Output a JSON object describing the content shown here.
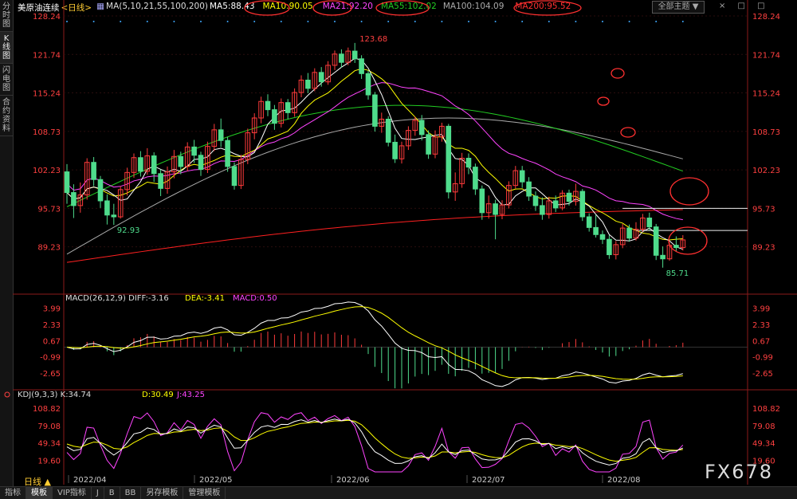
{
  "sidebar": {
    "tabs": [
      {
        "label": "分时图"
      },
      {
        "label": "K线图"
      },
      {
        "label": "闪电图"
      },
      {
        "label": "合约资料"
      }
    ]
  },
  "header": {
    "instrument": "美原油连续",
    "period_tag": "<日线>",
    "ma_params": "MA(5,10,21,55,100,200)",
    "ma5": "MA5:88.43",
    "ma10": "MA10:90.05",
    "ma21": "MA21:92.20",
    "ma55": "MA55:102.02",
    "ma100": "MA100:104.09",
    "ma200": "MA200:95.52",
    "theme_button": "全部主题 ▼",
    "window_buttons": "× □ □"
  },
  "macd_header": {
    "params": "MACD(26,12,9)",
    "diff": "DIFF:-3.16",
    "dea": "DEA:-3.41",
    "macd": "MACD:0.50"
  },
  "kdj_header": {
    "params": "KDJ(9,3,3)",
    "k": "K:34.74",
    "d": "D:30.49",
    "j": "J:43.25"
  },
  "price_axis": [
    "128.24",
    "121.74",
    "115.24",
    "108.73",
    "102.23",
    "95.73",
    "89.23"
  ],
  "macd_axis": [
    "3.99",
    "2.33",
    "0.67",
    "-0.99",
    "-2.65"
  ],
  "kdj_axis": [
    "108.82",
    "79.08",
    "49.34",
    "19.60"
  ],
  "date_axis": [
    "2022/04",
    "2022/05",
    "2022/06",
    "2022/07",
    "2022/08"
  ],
  "annotations": {
    "high_label": "123.68",
    "low_label_1": "92.93",
    "low_label_2": "85.71"
  },
  "period_label": "日线 ▲",
  "bottom_tabs": [
    "指标",
    "模板",
    "VIP指标",
    "J",
    "B",
    "BB",
    "另存模板",
    "管理模板"
  ],
  "watermark": "FX678",
  "colors": {
    "up_candle": "#ff3b3b",
    "down_candle": "#4fdc8c",
    "ma5": "#ffffff",
    "ma10": "#ffff00",
    "ma21": "#ff44ff",
    "ma55": "#22cc22",
    "ma100": "#aaaaaa",
    "ma200": "#ff2020",
    "highlight_circle": "#ff3030"
  },
  "chart_data": {
    "type": "candlestick",
    "title": "美原油连续 <日线>",
    "y_range": [
      85.71,
      128.24
    ],
    "candles": [
      {
        "o": 101.9,
        "c": 98.4,
        "h": 103.2,
        "l": 96.5
      },
      {
        "o": 98.4,
        "c": 96.2,
        "h": 99.8,
        "l": 94.1
      },
      {
        "o": 96.2,
        "c": 98.0,
        "h": 100.1,
        "l": 95.0
      },
      {
        "o": 98.0,
        "c": 103.5,
        "h": 104.2,
        "l": 97.2
      },
      {
        "o": 103.5,
        "c": 100.6,
        "h": 104.4,
        "l": 99.5
      },
      {
        "o": 100.6,
        "c": 97.0,
        "h": 101.2,
        "l": 95.8
      },
      {
        "o": 97.0,
        "c": 94.6,
        "h": 98.1,
        "l": 93.0
      },
      {
        "o": 94.6,
        "c": 94.3,
        "h": 96.5,
        "l": 92.93
      },
      {
        "o": 94.3,
        "c": 98.9,
        "h": 99.5,
        "l": 94.0
      },
      {
        "o": 98.9,
        "c": 101.8,
        "h": 102.6,
        "l": 97.9
      },
      {
        "o": 101.8,
        "c": 104.3,
        "h": 105.0,
        "l": 100.9
      },
      {
        "o": 104.3,
        "c": 102.0,
        "h": 105.4,
        "l": 101.1
      },
      {
        "o": 102.0,
        "c": 104.6,
        "h": 105.9,
        "l": 101.4
      },
      {
        "o": 104.6,
        "c": 101.6,
        "h": 105.2,
        "l": 100.2
      },
      {
        "o": 101.6,
        "c": 99.1,
        "h": 102.3,
        "l": 97.8
      },
      {
        "o": 99.1,
        "c": 101.9,
        "h": 102.8,
        "l": 98.2
      },
      {
        "o": 101.9,
        "c": 104.5,
        "h": 105.6,
        "l": 100.8
      },
      {
        "o": 104.5,
        "c": 102.8,
        "h": 105.3,
        "l": 101.5
      },
      {
        "o": 102.8,
        "c": 106.1,
        "h": 106.9,
        "l": 102.0
      },
      {
        "o": 106.1,
        "c": 104.7,
        "h": 107.3,
        "l": 103.4
      },
      {
        "o": 104.7,
        "c": 102.3,
        "h": 105.3,
        "l": 101.2
      },
      {
        "o": 102.3,
        "c": 106.2,
        "h": 107.0,
        "l": 101.7
      },
      {
        "o": 106.2,
        "c": 109.0,
        "h": 110.0,
        "l": 105.4
      },
      {
        "o": 109.0,
        "c": 107.2,
        "h": 110.9,
        "l": 106.1
      },
      {
        "o": 107.2,
        "c": 102.8,
        "h": 107.8,
        "l": 101.9
      },
      {
        "o": 102.8,
        "c": 99.6,
        "h": 103.5,
        "l": 98.9
      },
      {
        "o": 99.6,
        "c": 104.0,
        "h": 104.8,
        "l": 99.0
      },
      {
        "o": 104.0,
        "c": 108.5,
        "h": 109.2,
        "l": 103.2
      },
      {
        "o": 108.5,
        "c": 111.0,
        "h": 111.8,
        "l": 107.4
      },
      {
        "o": 111.0,
        "c": 113.8,
        "h": 114.6,
        "l": 110.1
      },
      {
        "o": 113.8,
        "c": 112.4,
        "h": 115.0,
        "l": 111.3
      },
      {
        "o": 112.4,
        "c": 110.1,
        "h": 113.2,
        "l": 109.0
      },
      {
        "o": 110.1,
        "c": 113.6,
        "h": 114.3,
        "l": 109.4
      },
      {
        "o": 113.6,
        "c": 111.9,
        "h": 114.2,
        "l": 110.8
      },
      {
        "o": 111.9,
        "c": 115.3,
        "h": 116.0,
        "l": 111.2
      },
      {
        "o": 115.3,
        "c": 117.4,
        "h": 118.2,
        "l": 114.5
      },
      {
        "o": 117.4,
        "c": 116.0,
        "h": 118.6,
        "l": 115.2
      },
      {
        "o": 116.0,
        "c": 118.7,
        "h": 119.4,
        "l": 115.5
      },
      {
        "o": 118.7,
        "c": 117.1,
        "h": 119.6,
        "l": 116.3
      },
      {
        "o": 117.1,
        "c": 119.9,
        "h": 120.6,
        "l": 116.6
      },
      {
        "o": 119.9,
        "c": 121.8,
        "h": 122.4,
        "l": 119.1
      },
      {
        "o": 121.8,
        "c": 120.4,
        "h": 122.6,
        "l": 119.5
      },
      {
        "o": 120.4,
        "c": 122.3,
        "h": 122.9,
        "l": 119.9
      },
      {
        "o": 122.3,
        "c": 121.0,
        "h": 123.68,
        "l": 120.3
      },
      {
        "o": 121.0,
        "c": 118.5,
        "h": 121.6,
        "l": 117.6
      },
      {
        "o": 118.5,
        "c": 114.9,
        "h": 119.0,
        "l": 114.1
      },
      {
        "o": 114.9,
        "c": 109.6,
        "h": 115.4,
        "l": 108.7
      },
      {
        "o": 109.6,
        "c": 110.8,
        "h": 111.9,
        "l": 108.5
      },
      {
        "o": 110.8,
        "c": 106.9,
        "h": 111.3,
        "l": 106.2
      },
      {
        "o": 106.9,
        "c": 104.1,
        "h": 108.2,
        "l": 103.4
      },
      {
        "o": 104.1,
        "c": 106.3,
        "h": 107.0,
        "l": 103.3
      },
      {
        "o": 106.3,
        "c": 108.9,
        "h": 109.6,
        "l": 105.6
      },
      {
        "o": 108.9,
        "c": 110.6,
        "h": 111.2,
        "l": 108.0
      },
      {
        "o": 110.6,
        "c": 108.2,
        "h": 111.5,
        "l": 107.2
      },
      {
        "o": 108.2,
        "c": 104.9,
        "h": 108.9,
        "l": 104.1
      },
      {
        "o": 104.9,
        "c": 107.8,
        "h": 108.9,
        "l": 104.2
      },
      {
        "o": 107.8,
        "c": 109.6,
        "h": 110.2,
        "l": 107.0
      },
      {
        "o": 109.6,
        "c": 98.5,
        "h": 110.0,
        "l": 97.4
      },
      {
        "o": 98.5,
        "c": 99.9,
        "h": 101.8,
        "l": 97.0
      },
      {
        "o": 99.9,
        "c": 104.2,
        "h": 105.1,
        "l": 99.2
      },
      {
        "o": 104.2,
        "c": 102.7,
        "h": 105.0,
        "l": 101.5
      },
      {
        "o": 102.7,
        "c": 99.0,
        "h": 103.3,
        "l": 98.0
      },
      {
        "o": 99.0,
        "c": 95.0,
        "h": 99.6,
        "l": 93.8
      },
      {
        "o": 95.0,
        "c": 96.5,
        "h": 97.9,
        "l": 94.0
      },
      {
        "o": 96.5,
        "c": 94.7,
        "h": 97.2,
        "l": 90.5
      },
      {
        "o": 94.7,
        "c": 96.3,
        "h": 97.1,
        "l": 93.9
      },
      {
        "o": 96.3,
        "c": 99.6,
        "h": 100.3,
        "l": 95.7
      },
      {
        "o": 99.6,
        "c": 102.1,
        "h": 102.9,
        "l": 99.1
      },
      {
        "o": 102.1,
        "c": 100.2,
        "h": 102.9,
        "l": 99.2
      },
      {
        "o": 100.2,
        "c": 97.8,
        "h": 101.0,
        "l": 97.0
      },
      {
        "o": 97.8,
        "c": 96.2,
        "h": 98.6,
        "l": 95.3
      },
      {
        "o": 96.2,
        "c": 94.7,
        "h": 97.6,
        "l": 93.8
      },
      {
        "o": 94.7,
        "c": 97.0,
        "h": 97.7,
        "l": 94.0
      },
      {
        "o": 97.0,
        "c": 95.8,
        "h": 97.9,
        "l": 95.1
      },
      {
        "o": 95.8,
        "c": 98.3,
        "h": 98.8,
        "l": 95.4
      },
      {
        "o": 98.3,
        "c": 96.9,
        "h": 98.9,
        "l": 96.2
      },
      {
        "o": 96.9,
        "c": 98.6,
        "h": 99.9,
        "l": 96.2
      },
      {
        "o": 98.6,
        "c": 94.3,
        "h": 99.0,
        "l": 93.6
      },
      {
        "o": 94.3,
        "c": 92.5,
        "h": 94.9,
        "l": 91.8
      },
      {
        "o": 92.5,
        "c": 91.3,
        "h": 94.6,
        "l": 90.8
      },
      {
        "o": 91.3,
        "c": 90.5,
        "h": 92.0,
        "l": 89.7
      },
      {
        "o": 90.5,
        "c": 87.9,
        "h": 91.2,
        "l": 87.2
      },
      {
        "o": 87.9,
        "c": 89.6,
        "h": 90.2,
        "l": 87.1
      },
      {
        "o": 89.6,
        "c": 92.4,
        "h": 93.1,
        "l": 89.0
      },
      {
        "o": 92.4,
        "c": 90.7,
        "h": 93.0,
        "l": 90.1
      },
      {
        "o": 90.7,
        "c": 92.2,
        "h": 93.4,
        "l": 90.3
      },
      {
        "o": 92.2,
        "c": 94.1,
        "h": 94.8,
        "l": 91.8
      },
      {
        "o": 94.1,
        "c": 92.6,
        "h": 95.0,
        "l": 92.0
      },
      {
        "o": 92.6,
        "c": 87.8,
        "h": 93.1,
        "l": 87.0
      },
      {
        "o": 87.8,
        "c": 87.2,
        "h": 89.3,
        "l": 85.71
      },
      {
        "o": 87.2,
        "c": 89.5,
        "h": 90.0,
        "l": 86.9
      },
      {
        "o": 89.5,
        "c": 89.1,
        "h": 91.0,
        "l": 88.4
      },
      {
        "o": 89.1,
        "c": 90.4,
        "h": 91.2,
        "l": 88.6
      }
    ],
    "ma_values_latest": {
      "MA5": 88.43,
      "MA10": 90.05,
      "MA21": 92.2,
      "MA55": 102.02,
      "MA100": 104.09,
      "MA200": 95.52
    },
    "macd_latest": {
      "DIFF": -3.16,
      "DEA": -3.41,
      "MACD": 0.5
    },
    "kdj_latest": {
      "K": 34.74,
      "D": 30.49,
      "J": 43.25
    },
    "macd_range": [
      -4.2,
      4.7
    ],
    "kdj_range": [
      0,
      125
    ],
    "horizontal_levels": [
      95.73,
      92.0
    ]
  }
}
